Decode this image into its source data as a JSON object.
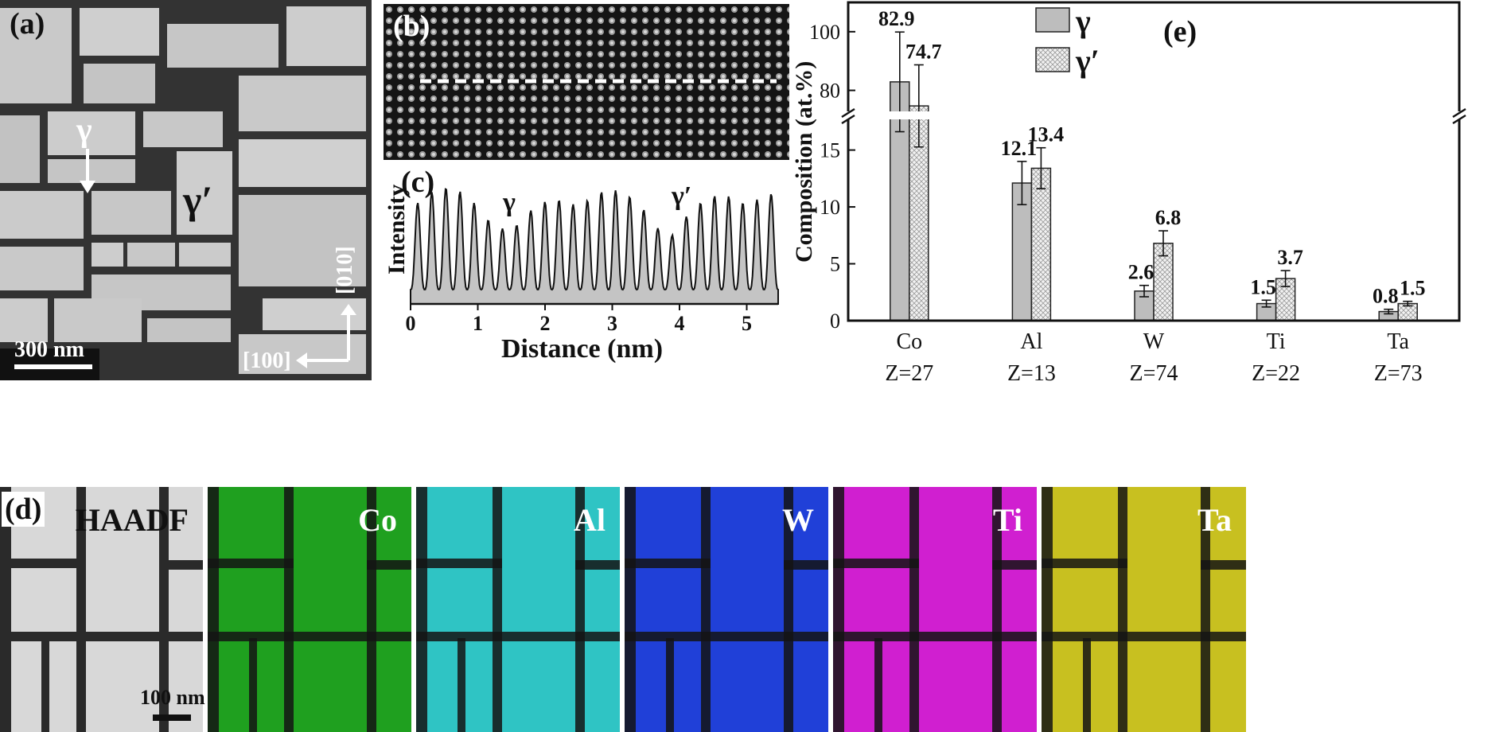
{
  "panel_a": {
    "label": "(a)",
    "gamma": "γ",
    "gamma_prime": "γ′",
    "scale": "300 nm",
    "dir_x": "[100]",
    "dir_y": "[010]"
  },
  "panel_b": {
    "label": "(b)"
  },
  "panel_c": {
    "label": "(c)",
    "gamma": "γ",
    "gamma_prime": "γ′",
    "ylabel": "Intensity",
    "xlabel": "Distance (nm)",
    "xticks": [
      "0",
      "1",
      "2",
      "3",
      "4",
      "5"
    ]
  },
  "panel_d": {
    "label": "(d)",
    "scale": "100 nm",
    "maps": [
      {
        "name": "HAADF",
        "color": "#d8d8d8"
      },
      {
        "name": "Co",
        "color": "#1fa01f"
      },
      {
        "name": "Al",
        "color": "#2fc4c4"
      },
      {
        "name": "W",
        "color": "#2040d8"
      },
      {
        "name": "Ti",
        "color": "#d01fd0"
      },
      {
        "name": "Ta",
        "color": "#c8c020"
      }
    ]
  },
  "chart_data": {
    "type": "bar",
    "label": "(e)",
    "title": "",
    "xlabel": "",
    "ylabel": "Composition (at.%)",
    "categories": [
      "Co",
      "Al",
      "W",
      "Ti",
      "Ta"
    ],
    "category_z": [
      "Z=27",
      "Z=13",
      "Z=74",
      "Z=22",
      "Z=73"
    ],
    "series": [
      {
        "name": "γ",
        "values": [
          82.9,
          12.1,
          2.6,
          1.5,
          0.8
        ],
        "errors": [
          17.0,
          1.9,
          0.5,
          0.3,
          0.2
        ],
        "labels": [
          "82.9",
          "12.1",
          "2.6",
          "1.5",
          "0.8"
        ]
      },
      {
        "name": "γ′",
        "values": [
          74.7,
          13.4,
          6.8,
          3.7,
          1.5
        ],
        "errors": [
          14.0,
          1.8,
          1.1,
          0.7,
          0.2
        ],
        "labels": [
          "74.7",
          "13.4",
          "6.8",
          "3.7",
          "1.5"
        ]
      }
    ],
    "axis_break": [
      17,
      75
    ],
    "ylim_lower": [
      0,
      17
    ],
    "ylim_upper": [
      75,
      110
    ],
    "yticks_lower": [
      "0",
      "5",
      "10",
      "15"
    ],
    "yticks_upper": [
      "80",
      "100"
    ],
    "legend_position": "top-right"
  }
}
